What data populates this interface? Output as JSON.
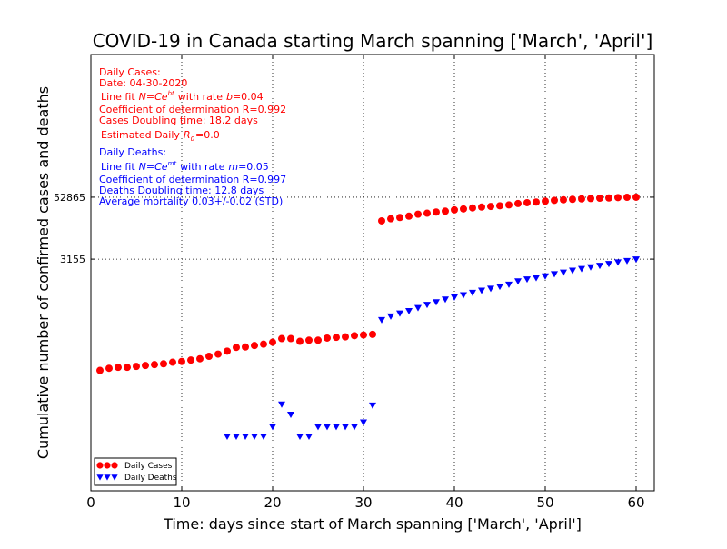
{
  "chart_data": {
    "type": "scatter",
    "title": "COVID-19 in Canada starting March spanning ['March', 'April']",
    "xlabel": "Time: days since start of March spanning ['March', 'April']",
    "ylabel": "Cumulative number of confirmed cases and deaths",
    "xlim": [
      0,
      62
    ],
    "x_ticks": [
      0,
      10,
      20,
      30,
      40,
      50,
      60
    ],
    "y_scale": "log",
    "y_ticks": [
      3155,
      52865
    ],
    "y_tick_labels": [
      "3155",
      "52865"
    ],
    "grid": true,
    "legend_placement": "bottom-left",
    "series": [
      {
        "name": "Daily Cases",
        "color": "#ff0000",
        "marker": "circle",
        "x": [
          1,
          2,
          3,
          4,
          5,
          6,
          7,
          8,
          9,
          10,
          11,
          12,
          13,
          14,
          15,
          16,
          17,
          18,
          19,
          20,
          21,
          22,
          23,
          24,
          25,
          26,
          27,
          28,
          29,
          30,
          31,
          32,
          33,
          34,
          35,
          36,
          37,
          38,
          39,
          40,
          41,
          42,
          43,
          44,
          45,
          46,
          47,
          48,
          49,
          50,
          51,
          52,
          53,
          54,
          55,
          56,
          57,
          58,
          59,
          60
        ],
        "y": [
          20,
          22,
          23,
          23,
          24,
          25,
          26,
          27,
          29,
          30,
          32,
          34,
          38,
          42,
          48,
          57,
          58,
          62,
          66,
          72,
          85,
          85,
          75,
          79,
          79,
          87,
          90,
          92,
          97,
          100,
          103,
          18000,
          19800,
          21000,
          22300,
          24400,
          25500,
          26900,
          28000,
          29700,
          31000,
          32500,
          33700,
          34700,
          35800,
          37200,
          39600,
          41200,
          42400,
          44200,
          45800,
          47000,
          48000,
          49000,
          49800,
          50500,
          51000,
          52000,
          52600,
          52865
        ]
      },
      {
        "name": "Daily Deaths",
        "color": "#0000ff",
        "marker": "triangle-down",
        "x": [
          15,
          16,
          17,
          18,
          19,
          20,
          21,
          22,
          23,
          24,
          25,
          26,
          27,
          28,
          29,
          30,
          31,
          32,
          33,
          34,
          35,
          36,
          37,
          38,
          39,
          40,
          41,
          42,
          43,
          44,
          45,
          46,
          47,
          48,
          49,
          50,
          51,
          52,
          53,
          54,
          55,
          56,
          57,
          58,
          59,
          60
        ],
        "y": [
          1,
          1,
          1,
          1,
          1,
          1.55,
          4.3,
          2.7,
          1,
          1,
          1.55,
          1.55,
          1.55,
          1.55,
          1.55,
          1.9,
          4.1,
          200,
          235,
          270,
          300,
          345,
          400,
          450,
          510,
          560,
          620,
          690,
          760,
          830,
          910,
          1000,
          1160,
          1270,
          1350,
          1460,
          1610,
          1730,
          1890,
          2040,
          2210,
          2360,
          2560,
          2750,
          2940,
          3155
        ]
      }
    ],
    "annotations": {
      "cases": {
        "header": "Daily Cases:",
        "date": "Date: 04-30-2020",
        "fit_prefix": "Line fit",
        "fit_formula": "N=Ce",
        "fit_exp": "bt",
        "fit_mid": "with rate",
        "fit_var": "b",
        "fit_value": "=0.04",
        "r_line": "Coefficient of determination R=0.992",
        "doubling": "Cases Doubling time: 18.2 days",
        "r0_prefix": "Estimated Daily",
        "r0_sym": "R",
        "r0_sub": "0",
        "r0_value": "=0.0"
      },
      "deaths": {
        "header": "Daily Deaths:",
        "fit_prefix": "Line fit",
        "fit_formula": "N=Ce",
        "fit_exp": "mt",
        "fit_mid": "with rate",
        "fit_var": "m",
        "fit_value": "=0.05",
        "r_line": "Coefficient of determination R=0.997",
        "doubling": "Deaths Doubling time: 12.8 days",
        "mortality": "Average mortality 0.03+/-0.02 (STD)"
      }
    },
    "colors": {
      "cases": "#ff0000",
      "deaths": "#0000ff",
      "grid": "#000000",
      "axes": "#000000"
    }
  }
}
